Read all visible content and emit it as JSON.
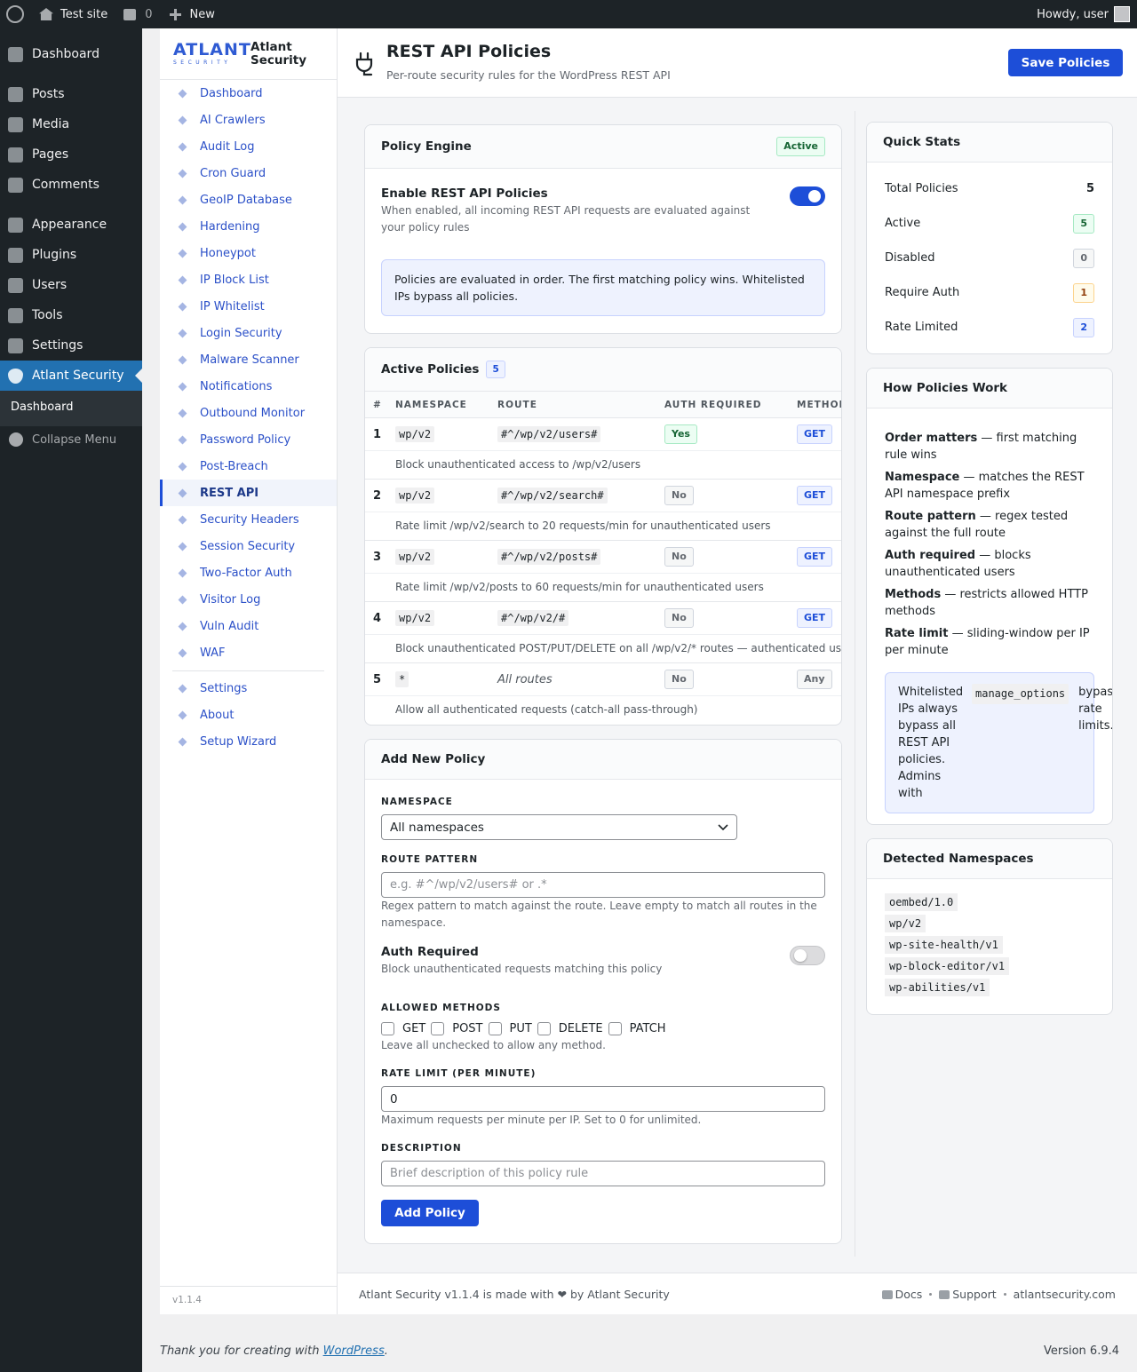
{
  "admin_bar": {
    "site_name": "Test site",
    "comments_count": "0",
    "new": "New",
    "greeting": "Howdy, user"
  },
  "wp_menu": {
    "items": [
      {
        "label": "Dashboard"
      },
      {
        "label": "Posts"
      },
      {
        "label": "Media"
      },
      {
        "label": "Pages"
      },
      {
        "label": "Comments"
      },
      {
        "label": "Appearance"
      },
      {
        "label": "Plugins"
      },
      {
        "label": "Users"
      },
      {
        "label": "Tools"
      },
      {
        "label": "Settings"
      },
      {
        "label": "Atlant Security",
        "current": true
      }
    ],
    "submenu": [
      "Dashboard"
    ],
    "collapse": "Collapse Menu"
  },
  "plugin_nav": {
    "logo": "ATLANT",
    "logo_sub": "SECURITY",
    "brand": "Atlant Security",
    "items": [
      {
        "label": "Dashboard"
      },
      {
        "label": "AI Crawlers"
      },
      {
        "label": "Audit Log"
      },
      {
        "label": "Cron Guard"
      },
      {
        "label": "GeoIP Database"
      },
      {
        "label": "Hardening"
      },
      {
        "label": "Honeypot"
      },
      {
        "label": "IP Block List"
      },
      {
        "label": "IP Whitelist"
      },
      {
        "label": "Login Security"
      },
      {
        "label": "Malware Scanner"
      },
      {
        "label": "Notifications"
      },
      {
        "label": "Outbound Monitor"
      },
      {
        "label": "Password Policy"
      },
      {
        "label": "Post-Breach"
      },
      {
        "label": "REST API",
        "current": true
      },
      {
        "label": "Security Headers"
      },
      {
        "label": "Session Security"
      },
      {
        "label": "Two-Factor Auth"
      },
      {
        "label": "Visitor Log"
      },
      {
        "label": "Vuln Audit"
      },
      {
        "label": "WAF"
      }
    ],
    "bottom_items": [
      "Settings",
      "About",
      "Setup Wizard"
    ],
    "version": "v1.1.4"
  },
  "header": {
    "title": "REST API Policies",
    "subtitle": "Per-route security rules for the WordPress REST API",
    "save_button": "Save Policies"
  },
  "policy_engine": {
    "title": "Policy Engine",
    "status": "Active",
    "toggle_label": "Enable REST API Policies",
    "toggle_help": "When enabled, all incoming REST API requests are evaluated against your policy rules",
    "enabled": true,
    "notice": "Policies are evaluated in order. The first matching policy wins. Whitelisted IPs bypass all policies."
  },
  "active_policies": {
    "title": "Active Policies",
    "count": 5,
    "columns": [
      "#",
      "NAMESPACE",
      "ROUTE",
      "AUTH REQUIRED",
      "METHODS"
    ],
    "rows": [
      {
        "number": 1,
        "namespace": "wp/v2",
        "route": "#^/wp/v2/users#",
        "auth": "Yes",
        "methods": [
          "GET"
        ],
        "description": "Block unauthenticated access to /wp/v2/users"
      },
      {
        "number": 2,
        "namespace": "wp/v2",
        "route": "#^/wp/v2/search#",
        "auth": "No",
        "methods": [
          "GET"
        ],
        "description": "Rate limit /wp/v2/search to 20 requests/min for unauthenticated users"
      },
      {
        "number": 3,
        "namespace": "wp/v2",
        "route": "#^/wp/v2/posts#",
        "auth": "No",
        "methods": [
          "GET"
        ],
        "description": "Rate limit /wp/v2/posts to 60 requests/min for unauthenticated users"
      },
      {
        "number": 4,
        "namespace": "wp/v2",
        "route": "#^/wp/v2/#",
        "auth": "No",
        "methods": [
          "GET"
        ],
        "description": "Block unauthenticated POST/PUT/DELETE on all /wp/v2/* routes — authenticated users"
      },
      {
        "number": 5,
        "namespace": "*",
        "route": "All routes",
        "route_is_pattern": false,
        "auth": "No",
        "methods": [
          "Any"
        ],
        "description": "Allow all authenticated requests (catch-all pass-through)"
      }
    ]
  },
  "add_policy": {
    "title": "Add New Policy",
    "namespace_label": "NAMESPACE",
    "namespace_value": "All namespaces",
    "route_label": "ROUTE PATTERN",
    "route_placeholder": "e.g. #^/wp/v2/users# or .*",
    "route_help": "Regex pattern to match against the route. Leave empty to match all routes in the namespace.",
    "auth_label": "Auth Required",
    "auth_help": "Block unauthenticated requests matching this policy",
    "auth_enabled": false,
    "methods_label": "ALLOWED METHODS",
    "methods": [
      "GET",
      "POST",
      "PUT",
      "DELETE",
      "PATCH"
    ],
    "methods_help": "Leave all unchecked to allow any method.",
    "rate_label": "RATE LIMIT (PER MINUTE)",
    "rate_value": 0,
    "rate_help": "Maximum requests per minute per IP. Set to 0 for unlimited.",
    "description_label": "DESCRIPTION",
    "description_placeholder": "Brief description of this policy rule",
    "submit": "Add Policy"
  },
  "quick_stats": {
    "title": "Quick Stats",
    "items": [
      {
        "label": "Total Policies",
        "value": 5,
        "style": "plain"
      },
      {
        "label": "Active",
        "value": 5,
        "style": "green"
      },
      {
        "label": "Disabled",
        "value": 0,
        "style": "gray"
      },
      {
        "label": "Require Auth",
        "value": 1,
        "style": "yellow"
      },
      {
        "label": "Rate Limited",
        "value": 2,
        "style": "blue"
      }
    ]
  },
  "how_policies": {
    "title": "How Policies Work",
    "items": [
      {
        "term": "Order matters",
        "text": "— first matching rule wins"
      },
      {
        "term": "Namespace",
        "text": "— matches the REST API namespace prefix"
      },
      {
        "term": "Route pattern",
        "text": "— regex tested against the full route"
      },
      {
        "term": "Auth required",
        "text": "— blocks unauthenticated users"
      },
      {
        "term": "Methods",
        "text": "— restricts allowed HTTP methods"
      },
      {
        "term": "Rate limit",
        "text": "— sliding-window per IP per minute"
      }
    ],
    "note": {
      "text": "Whitelisted IPs always bypass all REST API policies. Admins with",
      "code": "manage_options",
      "after": "bypass rate limits."
    }
  },
  "detected_namespaces": {
    "title": "Detected Namespaces",
    "items": [
      "oembed/1.0",
      "wp/v2",
      "wp-site-health/v1",
      "wp-block-editor/v1",
      "wp-abilities/v1"
    ]
  },
  "footer": {
    "credit": "Atlant Security v1.1.4 is made with ❤ by Atlant Security",
    "links": [
      "Docs",
      "Support",
      "atlantsecurity.com"
    ]
  },
  "wp_footer": {
    "thanks": "Thank you for creating with",
    "link": "WordPress",
    "period": ".",
    "version": "Version 6.9.4"
  }
}
